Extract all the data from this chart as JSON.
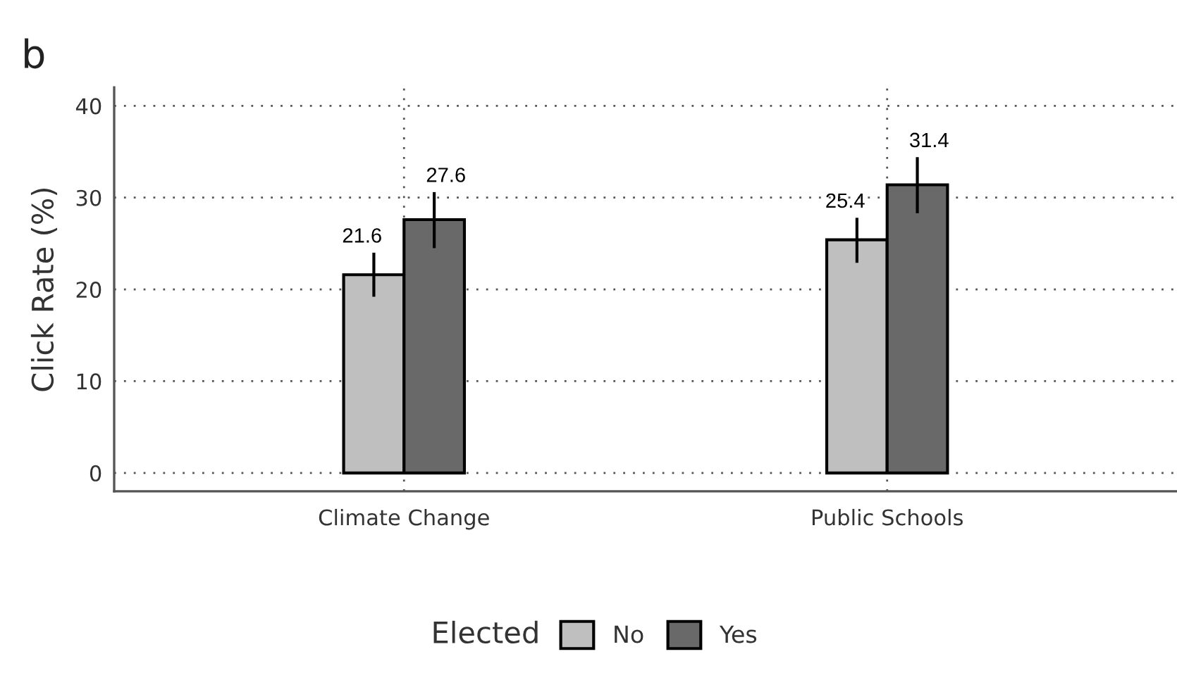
{
  "chart_data": {
    "type": "bar",
    "title": "b",
    "ylabel": "Click Rate (%)",
    "legend_title": "Elected",
    "categories": [
      "Climate Change",
      "Public Schools"
    ],
    "series": [
      {
        "name": "No",
        "color": "#bfbfbf",
        "values": [
          21.6,
          25.4
        ],
        "errors": [
          [
            19.2,
            24.0
          ],
          [
            22.9,
            27.8
          ]
        ]
      },
      {
        "name": "Yes",
        "color": "#696969",
        "values": [
          27.6,
          31.4
        ],
        "errors": [
          [
            24.5,
            30.6
          ],
          [
            28.3,
            34.4
          ]
        ]
      }
    ],
    "ylim": [
      -2,
      42
    ],
    "yticks": [
      0,
      10,
      20,
      30,
      40
    ],
    "grid": true,
    "legend": "bottom",
    "data_labels": true
  }
}
